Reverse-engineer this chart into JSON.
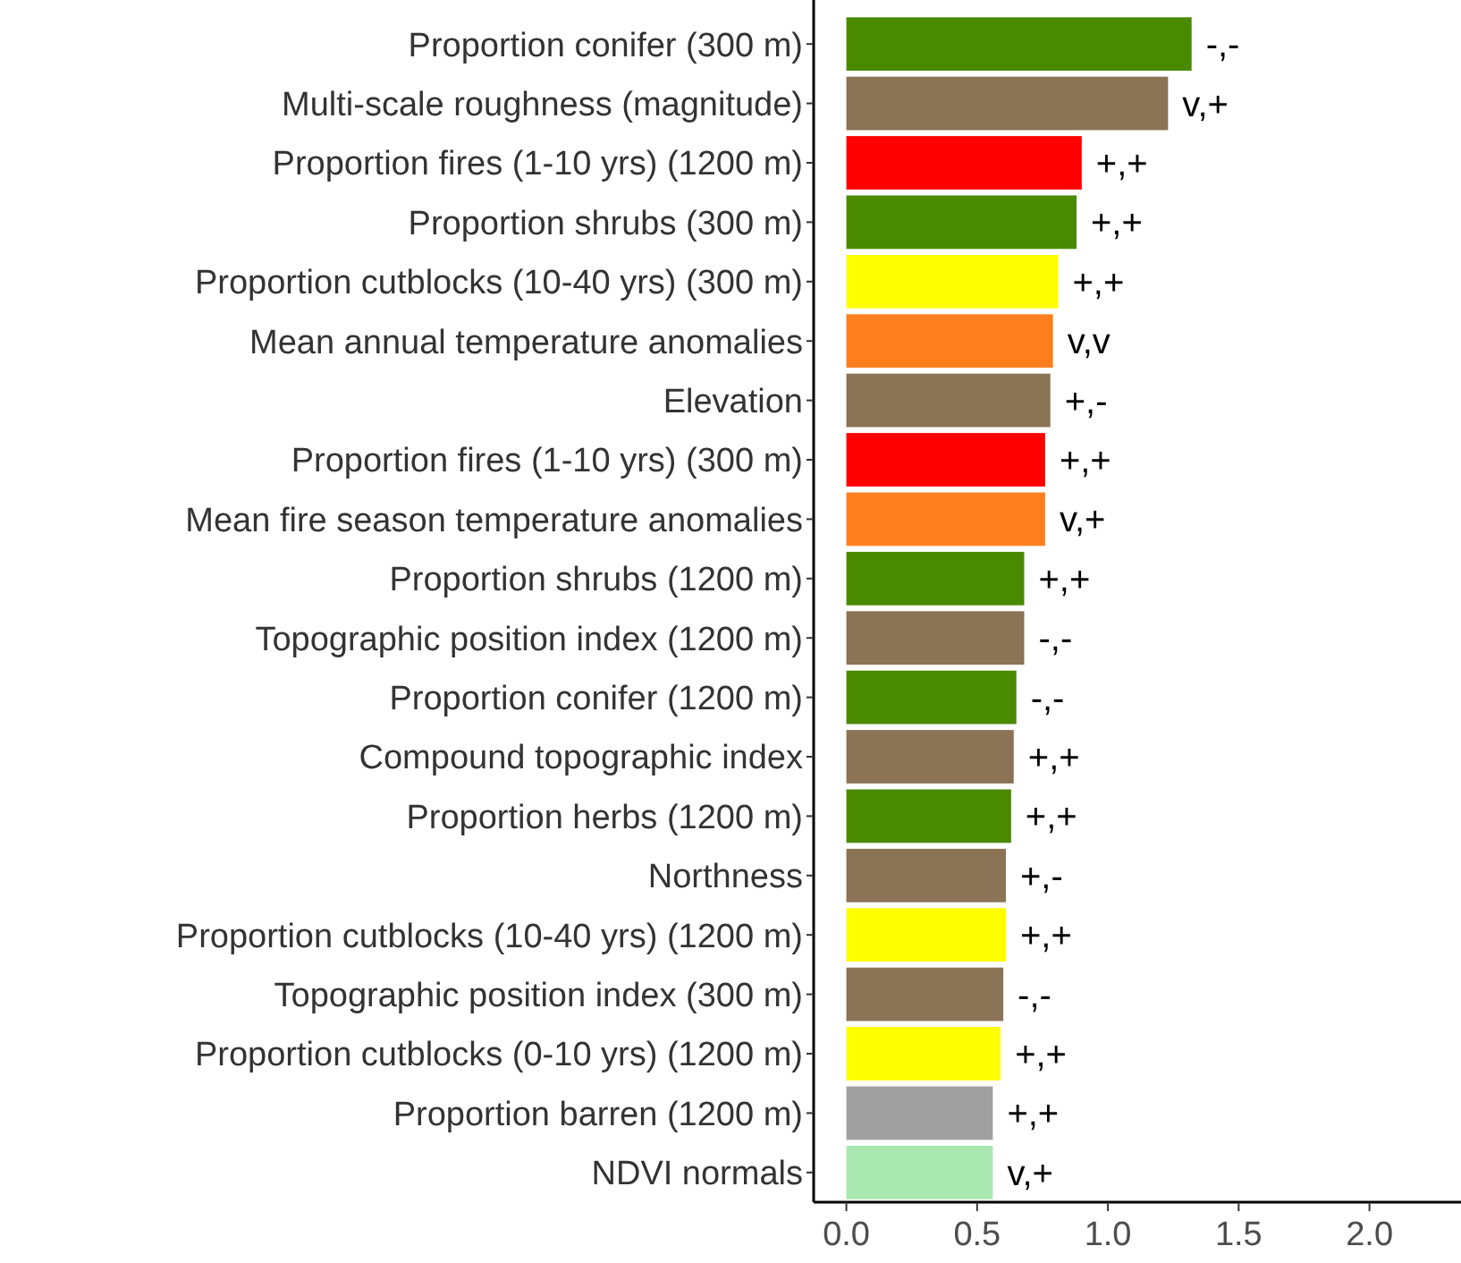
{
  "chart_data": {
    "type": "bar",
    "orientation": "horizontal",
    "categories": [
      "Proportion conifer (300 m)",
      "Multi-scale roughness (magnitude)",
      "Proportion fires (1-10 yrs) (1200 m)",
      "Proportion shrubs (300 m)",
      "Proportion cutblocks (10-40 yrs) (300 m)",
      "Mean annual temperature anomalies",
      "Elevation",
      "Proportion fires (1-10 yrs) (300 m)",
      "Mean fire season temperature anomalies",
      "Proportion shrubs (1200 m)",
      "Topographic position index (1200 m)",
      "Proportion conifer (1200 m)",
      "Compound topographic index",
      "Proportion herbs (1200 m)",
      "Northness",
      "Proportion cutblocks (10-40 yrs) (1200 m)",
      "Topographic position index (300 m)",
      "Proportion cutblocks (0-10 yrs) (1200 m)",
      "Proportion barren (1200 m)",
      "NDVI normals"
    ],
    "values": [
      1.32,
      1.23,
      0.9,
      0.88,
      0.81,
      0.79,
      0.78,
      0.76,
      0.76,
      0.68,
      0.68,
      0.65,
      0.64,
      0.63,
      0.61,
      0.61,
      0.6,
      0.59,
      0.56,
      0.56
    ],
    "colors": [
      "#4a8a00",
      "#8b7355",
      "#ff0000",
      "#4a8a00",
      "#ffff00",
      "#ff7f1e",
      "#8b7355",
      "#ff0000",
      "#ff7f1e",
      "#4a8a00",
      "#8b7355",
      "#4a8a00",
      "#8b7355",
      "#4a8a00",
      "#8b7355",
      "#ffff00",
      "#8b7355",
      "#ffff00",
      "#a0a0a0",
      "#a8e8b0"
    ],
    "value_labels": [
      "-,-",
      "v,+",
      "+,+",
      "+,+",
      "+,+",
      "v,v",
      "+,-",
      "+,+",
      "v,+",
      "+,+",
      "-,-",
      "-,-",
      "+,+",
      "+,+",
      "+,-",
      "+,+",
      "-,-",
      "+,+",
      "+,+",
      "v,+"
    ],
    "xlim": [
      -0.125,
      2.35
    ],
    "xticks": [
      {
        "value": 0,
        "label": "0.0"
      },
      {
        "value": 0.5,
        "label": "0.5"
      },
      {
        "value": 1,
        "label": "1.0"
      },
      {
        "value": 1.5,
        "label": "1.5"
      },
      {
        "value": 2,
        "label": "2.0"
      }
    ]
  }
}
